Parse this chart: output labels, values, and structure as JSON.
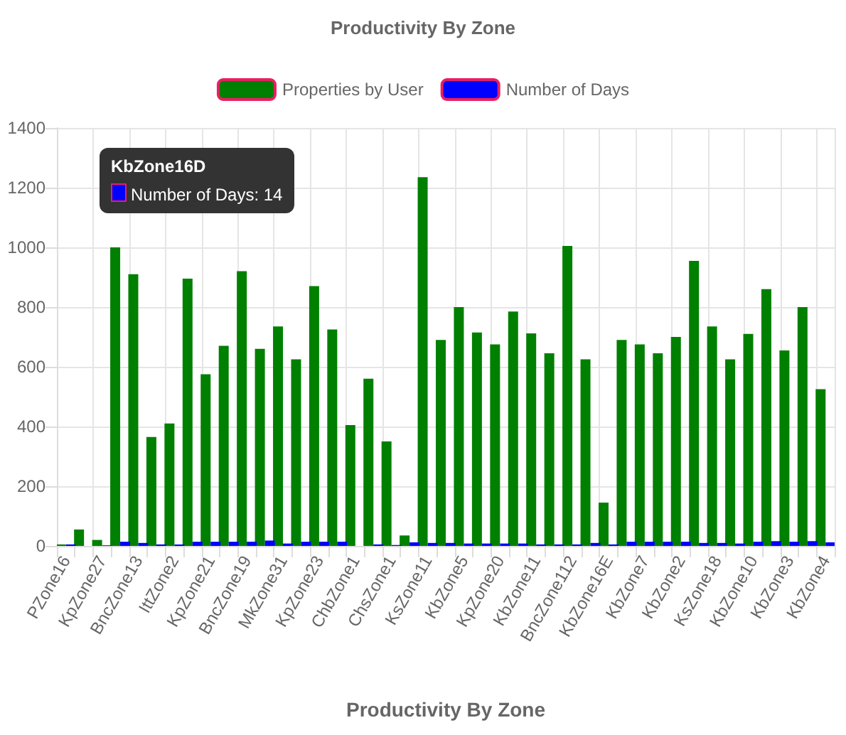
{
  "chart_data": {
    "type": "bar",
    "title": "Productivity By Zone",
    "xlabel": "Productivity By Zone",
    "categories": [
      "PZone16",
      null,
      "KpZone27",
      null,
      "BncZone13",
      null,
      "IttZone2",
      null,
      "KpZone21",
      null,
      "BncZone19",
      null,
      "MkZone31",
      null,
      "KpZone23",
      null,
      "ChbZone1",
      null,
      "ChsZone1",
      null,
      "KsZone11",
      null,
      "KbZone5",
      null,
      "KpZone20",
      null,
      "KbZone11",
      null,
      "BncZone112",
      null,
      "KbZone16E",
      null,
      "KbZone7",
      null,
      "KbZone2",
      null,
      "KsZone18",
      null,
      "KbZone10",
      null,
      "KbZone3",
      null,
      "KbZone4"
    ],
    "series": [
      {
        "name": "Properties by User",
        "color": "#008000",
        "values": [
          5,
          55,
          20,
          1000,
          910,
          365,
          410,
          895,
          575,
          670,
          920,
          660,
          735,
          625,
          870,
          725,
          405,
          560,
          350,
          35,
          1235,
          690,
          800,
          715,
          675,
          785,
          712,
          645,
          1005,
          625,
          145,
          690,
          675,
          645,
          700,
          955,
          735,
          625,
          710,
          860,
          655,
          800,
          525
        ]
      },
      {
        "name": "Number of Days",
        "color": "#0000ff",
        "values": [
          5,
          0,
          2,
          14,
          10,
          5,
          5,
          14,
          14,
          14,
          14,
          18,
          8,
          14,
          14,
          14,
          0,
          5,
          3,
          12,
          10,
          10,
          8,
          8,
          8,
          8,
          5,
          5,
          5,
          10,
          5,
          14,
          14,
          14,
          14,
          10,
          10,
          8,
          14,
          16,
          14,
          16,
          12
        ]
      }
    ],
    "ylim": [
      0,
      1400
    ],
    "yticks": [
      0,
      200,
      400,
      600,
      800,
      1000,
      1200,
      1400
    ],
    "grid": true,
    "legend": "top",
    "annotations": [
      "KbZone16D",
      "Number of Days: 14"
    ]
  }
}
